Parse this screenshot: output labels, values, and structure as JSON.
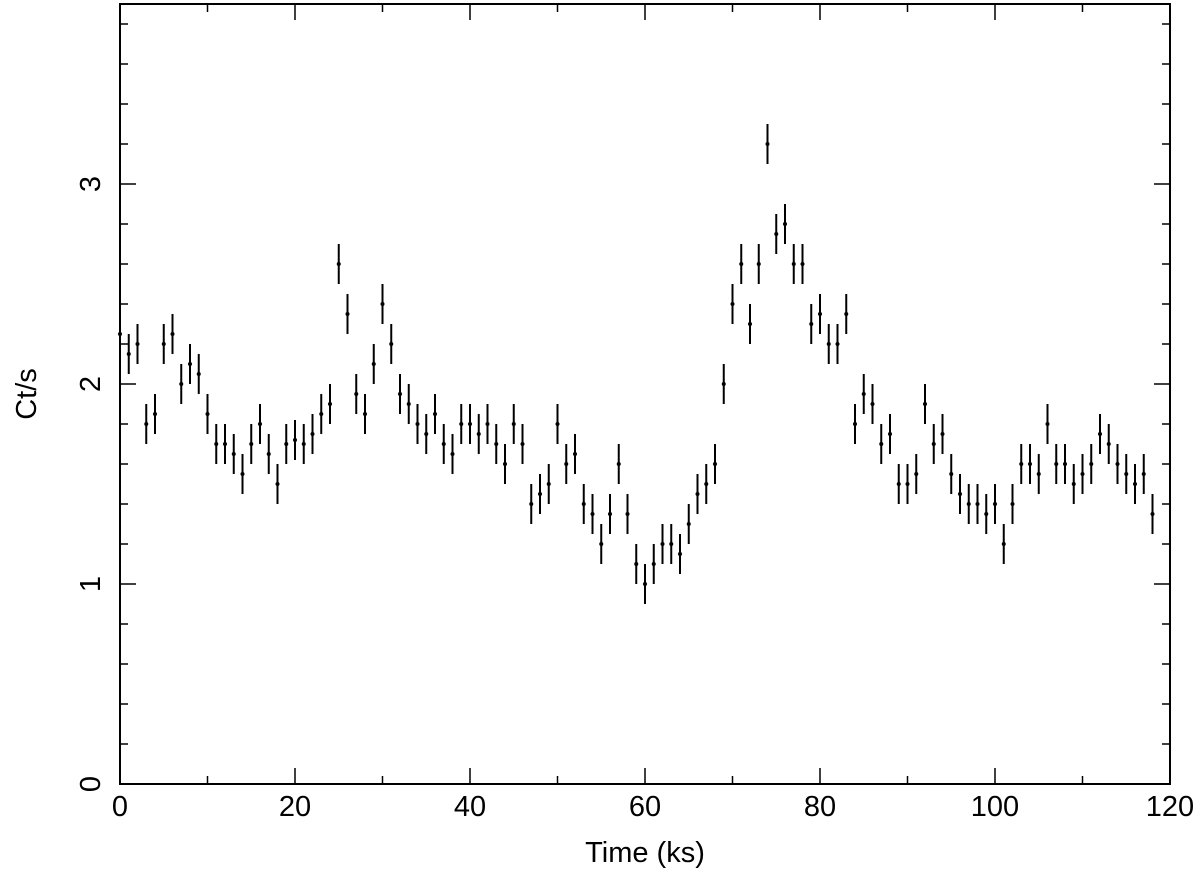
{
  "chart_data": {
    "type": "errorbar",
    "xlabel": "Time (ks)",
    "ylabel": "Ct/s",
    "x": [
      0,
      1,
      2,
      3,
      4,
      5,
      6,
      7,
      8,
      9,
      10,
      11,
      12,
      13,
      14,
      15,
      16,
      17,
      18,
      19,
      20,
      21,
      22,
      23,
      24,
      25,
      26,
      27,
      28,
      29,
      30,
      31,
      32,
      33,
      34,
      35,
      36,
      37,
      38,
      39,
      40,
      41,
      42,
      43,
      44,
      45,
      46,
      47,
      48,
      49,
      50,
      51,
      52,
      53,
      54,
      55,
      56,
      57,
      58,
      59,
      60,
      61,
      62,
      63,
      64,
      65,
      66,
      67,
      68,
      69,
      70,
      71,
      72,
      73,
      74,
      75,
      76,
      77,
      78,
      79,
      80,
      81,
      82,
      83,
      84,
      85,
      86,
      87,
      88,
      89,
      90,
      91,
      92,
      93,
      94,
      95,
      96,
      97,
      98,
      99,
      100,
      101,
      102,
      103,
      104,
      105,
      106,
      107,
      108,
      109,
      110,
      111,
      112,
      113,
      114,
      115,
      116,
      117,
      118
    ],
    "values": [
      2.25,
      2.15,
      2.2,
      1.8,
      1.85,
      2.2,
      2.25,
      2.0,
      2.1,
      2.05,
      1.85,
      1.7,
      1.7,
      1.65,
      1.55,
      1.7,
      1.8,
      1.65,
      1.5,
      1.7,
      1.72,
      1.7,
      1.75,
      1.85,
      1.9,
      2.6,
      2.35,
      1.95,
      1.85,
      2.1,
      2.4,
      2.2,
      1.95,
      1.9,
      1.8,
      1.75,
      1.85,
      1.7,
      1.65,
      1.8,
      1.8,
      1.75,
      1.8,
      1.7,
      1.6,
      1.8,
      1.7,
      1.4,
      1.45,
      1.5,
      1.8,
      1.6,
      1.65,
      1.4,
      1.35,
      1.2,
      1.35,
      1.6,
      1.35,
      1.1,
      1.0,
      1.1,
      1.2,
      1.2,
      1.15,
      1.3,
      1.45,
      1.5,
      1.6,
      2.0,
      2.4,
      2.6,
      2.3,
      2.6,
      3.2,
      2.75,
      2.8,
      2.6,
      2.6,
      2.3,
      2.35,
      2.2,
      2.2,
      2.35,
      1.8,
      1.95,
      1.9,
      1.7,
      1.75,
      1.5,
      1.5,
      1.55,
      1.9,
      1.7,
      1.75,
      1.55,
      1.45,
      1.4,
      1.4,
      1.35,
      1.4,
      1.2,
      1.4,
      1.6,
      1.6,
      1.55,
      1.8,
      1.6,
      1.6,
      1.5,
      1.55,
      1.6,
      1.75,
      1.7,
      1.6,
      1.55,
      1.5,
      1.55,
      1.35
    ],
    "error": 0.1,
    "color": "#000000",
    "xlim": [
      0,
      120
    ],
    "xticks": [
      0,
      20,
      40,
      60,
      80,
      100,
      120
    ],
    "xminor": [
      10,
      30,
      50,
      70,
      90,
      110
    ],
    "ylim": [
      0,
      3.9
    ],
    "yticks": [
      0,
      1,
      2,
      3
    ],
    "yminor": [
      0.2,
      0.4,
      0.6,
      0.8,
      1.2,
      1.4,
      1.6,
      1.8,
      2.2,
      2.4,
      2.6,
      2.8,
      3.2,
      3.4,
      3.6,
      3.8
    ]
  }
}
